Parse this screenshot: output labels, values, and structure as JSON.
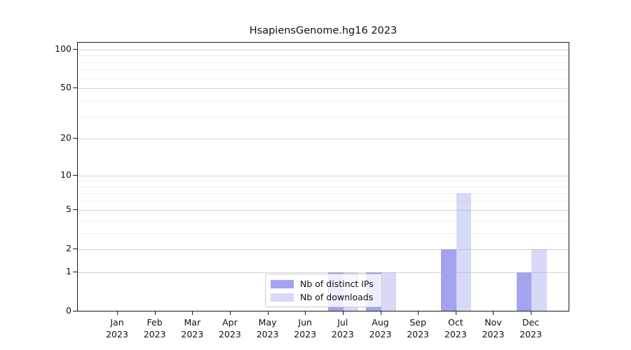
{
  "chart_data": {
    "type": "bar",
    "title": "HsapiensGenome.hg16 2023",
    "categories": [
      "Jan 2023",
      "Feb 2023",
      "Mar 2023",
      "Apr 2023",
      "May 2023",
      "Jun 2023",
      "Jul 2023",
      "Aug 2023",
      "Sep 2023",
      "Oct 2023",
      "Nov 2023",
      "Dec 2023"
    ],
    "series": [
      {
        "name": "Nb of distinct IPs",
        "color": "#a3a3f0",
        "values": [
          0,
          0,
          0,
          0,
          0,
          0,
          1,
          1,
          0,
          2,
          0,
          1
        ]
      },
      {
        "name": "Nb of downloads",
        "color": "#d8d8f8",
        "values": [
          0,
          0,
          0,
          0,
          0,
          0,
          1,
          1,
          0,
          7,
          0,
          2
        ]
      }
    ],
    "yscale": "log1p",
    "ylim": [
      0,
      113
    ],
    "yticks_major": [
      0,
      1,
      2,
      5,
      10,
      20,
      50,
      100
    ],
    "yticks_minor": [
      3,
      4,
      6,
      7,
      8,
      9,
      30,
      40,
      60,
      70,
      80,
      90
    ],
    "xlabel": "",
    "ylabel": "",
    "grid": true,
    "legend_position": "inside-bottom-center"
  }
}
